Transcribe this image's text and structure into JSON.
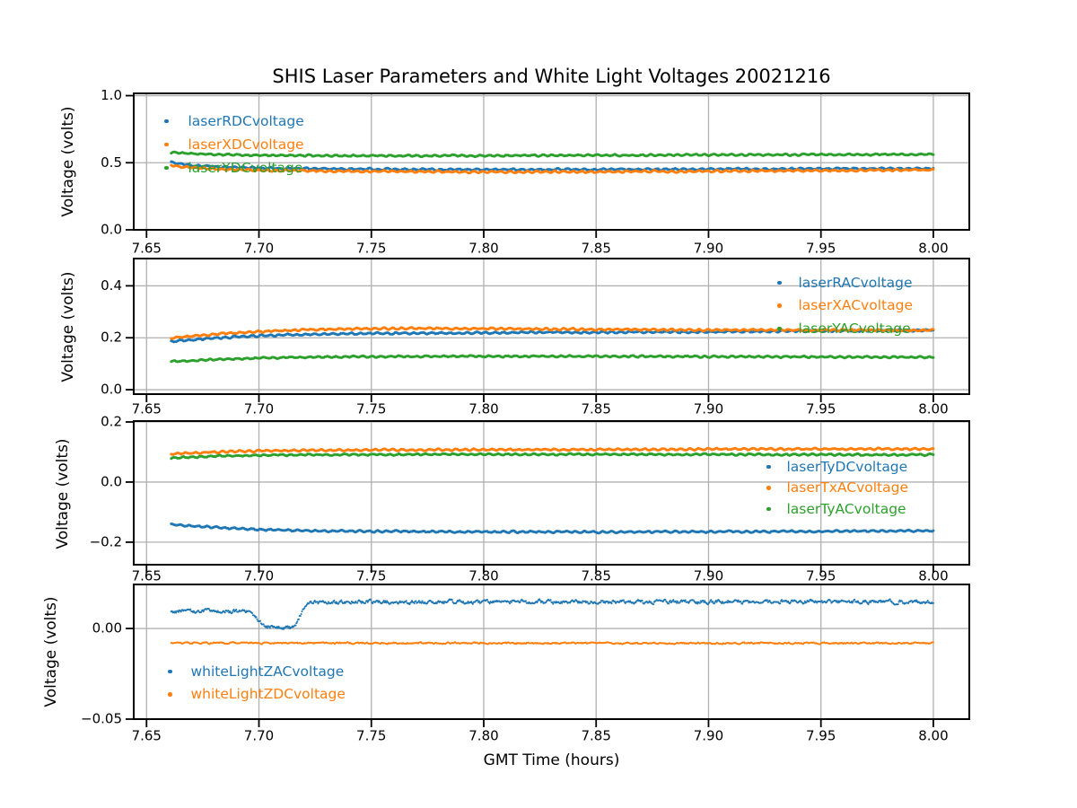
{
  "chart_data": {
    "type": "scatter",
    "title": "SHIS Laser Parameters and White Light Voltages 20021216",
    "xlabel": "GMT Time (hours)",
    "xlim": [
      7.6443,
      8.016
    ],
    "x_ticks": [
      7.65,
      7.7,
      7.75,
      7.8,
      7.85,
      7.9,
      7.95,
      8.0
    ],
    "x_tick_labels": [
      "7.65",
      "7.70",
      "7.75",
      "7.80",
      "7.85",
      "7.90",
      "7.95",
      "8.00"
    ],
    "grid": true,
    "grid_color": "#b0b0b0",
    "palette": {
      "blue": "#1f77b4",
      "orange": "#ff7f0e",
      "green": "#2ca02c"
    },
    "subplots": [
      {
        "ylabel": "Voltage (volts)",
        "ylim": [
          0,
          1.017
        ],
        "yticks": [
          0.0,
          0.5,
          1.0
        ],
        "ytick_labels": [
          "0.0",
          "0.5",
          "1.0"
        ],
        "legend_position": "upper left",
        "series": [
          {
            "name": "laserRDCvoltage",
            "color": "#1f77b4",
            "points": [
              [
                7.661,
                0.502
              ],
              [
                7.67,
                0.48
              ],
              [
                7.68,
                0.47
              ],
              [
                7.7,
                0.461
              ],
              [
                7.72,
                0.456
              ],
              [
                7.75,
                0.452
              ],
              [
                7.78,
                0.45
              ],
              [
                7.82,
                0.449
              ],
              [
                7.86,
                0.45
              ],
              [
                7.9,
                0.452
              ],
              [
                7.95,
                0.454
              ],
              [
                8.0,
                0.457
              ]
            ]
          },
          {
            "name": "laserXDCvoltage",
            "color": "#ff7f0e",
            "points": [
              [
                7.661,
                0.482
              ],
              [
                7.67,
                0.462
              ],
              [
                7.68,
                0.453
              ],
              [
                7.7,
                0.444
              ],
              [
                7.72,
                0.439
              ],
              [
                7.75,
                0.435
              ],
              [
                7.78,
                0.433
              ],
              [
                7.82,
                0.432
              ],
              [
                7.86,
                0.434
              ],
              [
                7.9,
                0.437
              ],
              [
                7.95,
                0.441
              ],
              [
                8.0,
                0.447
              ]
            ]
          },
          {
            "name": "laserYDCvoltage",
            "color": "#2ca02c",
            "points": [
              [
                7.661,
                0.575
              ],
              [
                7.68,
                0.561
              ],
              [
                7.7,
                0.556
              ],
              [
                7.73,
                0.552
              ],
              [
                7.76,
                0.551
              ],
              [
                7.8,
                0.553
              ],
              [
                7.85,
                0.556
              ],
              [
                7.9,
                0.558
              ],
              [
                7.95,
                0.56
              ],
              [
                8.0,
                0.562
              ]
            ]
          }
        ]
      },
      {
        "ylabel": "Voltage (volts)",
        "ylim": [
          -0.017,
          0.505
        ],
        "yticks": [
          0.0,
          0.2,
          0.4
        ],
        "ytick_labels": [
          "0.0",
          "0.2",
          "0.4"
        ],
        "legend_position": "upper right",
        "series": [
          {
            "name": "laserRACvoltage",
            "color": "#1f77b4",
            "points": [
              [
                7.661,
                0.186
              ],
              [
                7.67,
                0.192
              ],
              [
                7.68,
                0.199
              ],
              [
                7.7,
                0.208
              ],
              [
                7.72,
                0.213
              ],
              [
                7.74,
                0.216
              ],
              [
                7.77,
                0.218
              ],
              [
                7.8,
                0.219
              ],
              [
                7.84,
                0.221
              ],
              [
                7.88,
                0.222
              ],
              [
                7.92,
                0.224
              ],
              [
                7.96,
                0.227
              ],
              [
                8.0,
                0.229
              ]
            ]
          },
          {
            "name": "laserXACvoltage",
            "color": "#ff7f0e",
            "points": [
              [
                7.661,
                0.199
              ],
              [
                7.67,
                0.207
              ],
              [
                7.68,
                0.214
              ],
              [
                7.7,
                0.224
              ],
              [
                7.72,
                0.231
              ],
              [
                7.74,
                0.234
              ],
              [
                7.77,
                0.236
              ],
              [
                7.8,
                0.235
              ],
              [
                7.84,
                0.233
              ],
              [
                7.88,
                0.231
              ],
              [
                7.92,
                0.23
              ],
              [
                7.96,
                0.229
              ],
              [
                8.0,
                0.228
              ]
            ]
          },
          {
            "name": "laserYACvoltage",
            "color": "#2ca02c",
            "points": [
              [
                7.661,
                0.108
              ],
              [
                7.67,
                0.112
              ],
              [
                7.68,
                0.116
              ],
              [
                7.7,
                0.122
              ],
              [
                7.72,
                0.125
              ],
              [
                7.74,
                0.127
              ],
              [
                7.77,
                0.128
              ],
              [
                7.8,
                0.129
              ],
              [
                7.84,
                0.129
              ],
              [
                7.88,
                0.128
              ],
              [
                7.92,
                0.127
              ],
              [
                7.96,
                0.126
              ],
              [
                8.0,
                0.125
              ]
            ]
          }
        ]
      },
      {
        "ylabel": "Voltage (volts)",
        "ylim": [
          -0.275,
          0.203
        ],
        "yticks": [
          -0.2,
          0.0,
          0.2
        ],
        "ytick_labels": [
          "−0.2",
          "0.0",
          "0.2"
        ],
        "legend_position": "center right",
        "series": [
          {
            "name": "laserTyDCvoltage",
            "color": "#1f77b4",
            "points": [
              [
                7.661,
                -0.142
              ],
              [
                7.68,
                -0.151
              ],
              [
                7.7,
                -0.158
              ],
              [
                7.72,
                -0.162
              ],
              [
                7.75,
                -0.164
              ],
              [
                7.78,
                -0.165
              ],
              [
                7.82,
                -0.166
              ],
              [
                7.86,
                -0.166
              ],
              [
                7.9,
                -0.165
              ],
              [
                7.95,
                -0.164
              ],
              [
                8.0,
                -0.162
              ]
            ]
          },
          {
            "name": "laserTxACvoltage",
            "color": "#ff7f0e",
            "points": [
              [
                7.661,
                0.094
              ],
              [
                7.68,
                0.1
              ],
              [
                7.7,
                0.104
              ],
              [
                7.73,
                0.106
              ],
              [
                7.76,
                0.107
              ],
              [
                7.8,
                0.108
              ],
              [
                7.85,
                0.108
              ],
              [
                7.9,
                0.109
              ],
              [
                7.95,
                0.11
              ],
              [
                8.0,
                0.11
              ]
            ]
          },
          {
            "name": "laserTyACvoltage",
            "color": "#2ca02c",
            "points": [
              [
                7.661,
                0.08
              ],
              [
                7.68,
                0.086
              ],
              [
                7.7,
                0.089
              ],
              [
                7.73,
                0.091
              ],
              [
                7.76,
                0.092
              ],
              [
                7.8,
                0.092
              ],
              [
                7.85,
                0.092
              ],
              [
                7.9,
                0.092
              ],
              [
                7.95,
                0.091
              ],
              [
                8.0,
                0.091
              ]
            ]
          }
        ]
      },
      {
        "ylabel": "Voltage (volts)",
        "ylim": [
          -0.05,
          0.0243
        ],
        "yticks": [
          -0.05,
          0.0
        ],
        "ytick_labels": [
          "−0.05",
          "0.00"
        ],
        "legend_position": "lower left",
        "series": [
          {
            "name": "whiteLightZACvoltage",
            "color": "#1f77b4",
            "points": [
              [
                7.661,
                0.0095
              ],
              [
                7.67,
                0.0095
              ],
              [
                7.68,
                0.0095
              ],
              [
                7.69,
                0.0094
              ],
              [
                7.6955,
                0.0092
              ],
              [
                7.699,
                0.006
              ],
              [
                7.7015,
                0.0018
              ],
              [
                7.7035,
                0.0006
              ],
              [
                7.708,
                0.0004
              ],
              [
                7.7125,
                0.0004
              ],
              [
                7.7148,
                0.0007
              ],
              [
                7.7165,
                0.0025
              ],
              [
                7.719,
                0.009
              ],
              [
                7.7215,
                0.0138
              ],
              [
                7.724,
                0.0145
              ],
              [
                7.73,
                0.0145
              ],
              [
                7.75,
                0.0146
              ],
              [
                7.78,
                0.0145
              ],
              [
                7.81,
                0.0146
              ],
              [
                7.85,
                0.0146
              ],
              [
                7.89,
                0.0147
              ],
              [
                7.93,
                0.0147
              ],
              [
                7.96,
                0.0147
              ],
              [
                8.0,
                0.0145
              ]
            ]
          },
          {
            "name": "whiteLightZDCvoltage",
            "color": "#ff7f0e",
            "points": [
              [
                7.661,
                -0.008
              ],
              [
                7.7,
                -0.008
              ],
              [
                7.75,
                -0.008
              ],
              [
                7.8,
                -0.0081
              ],
              [
                7.85,
                -0.0081
              ],
              [
                7.9,
                -0.0081
              ],
              [
                7.95,
                -0.0081
              ],
              [
                8.0,
                -0.0081
              ]
            ]
          }
        ]
      }
    ]
  }
}
